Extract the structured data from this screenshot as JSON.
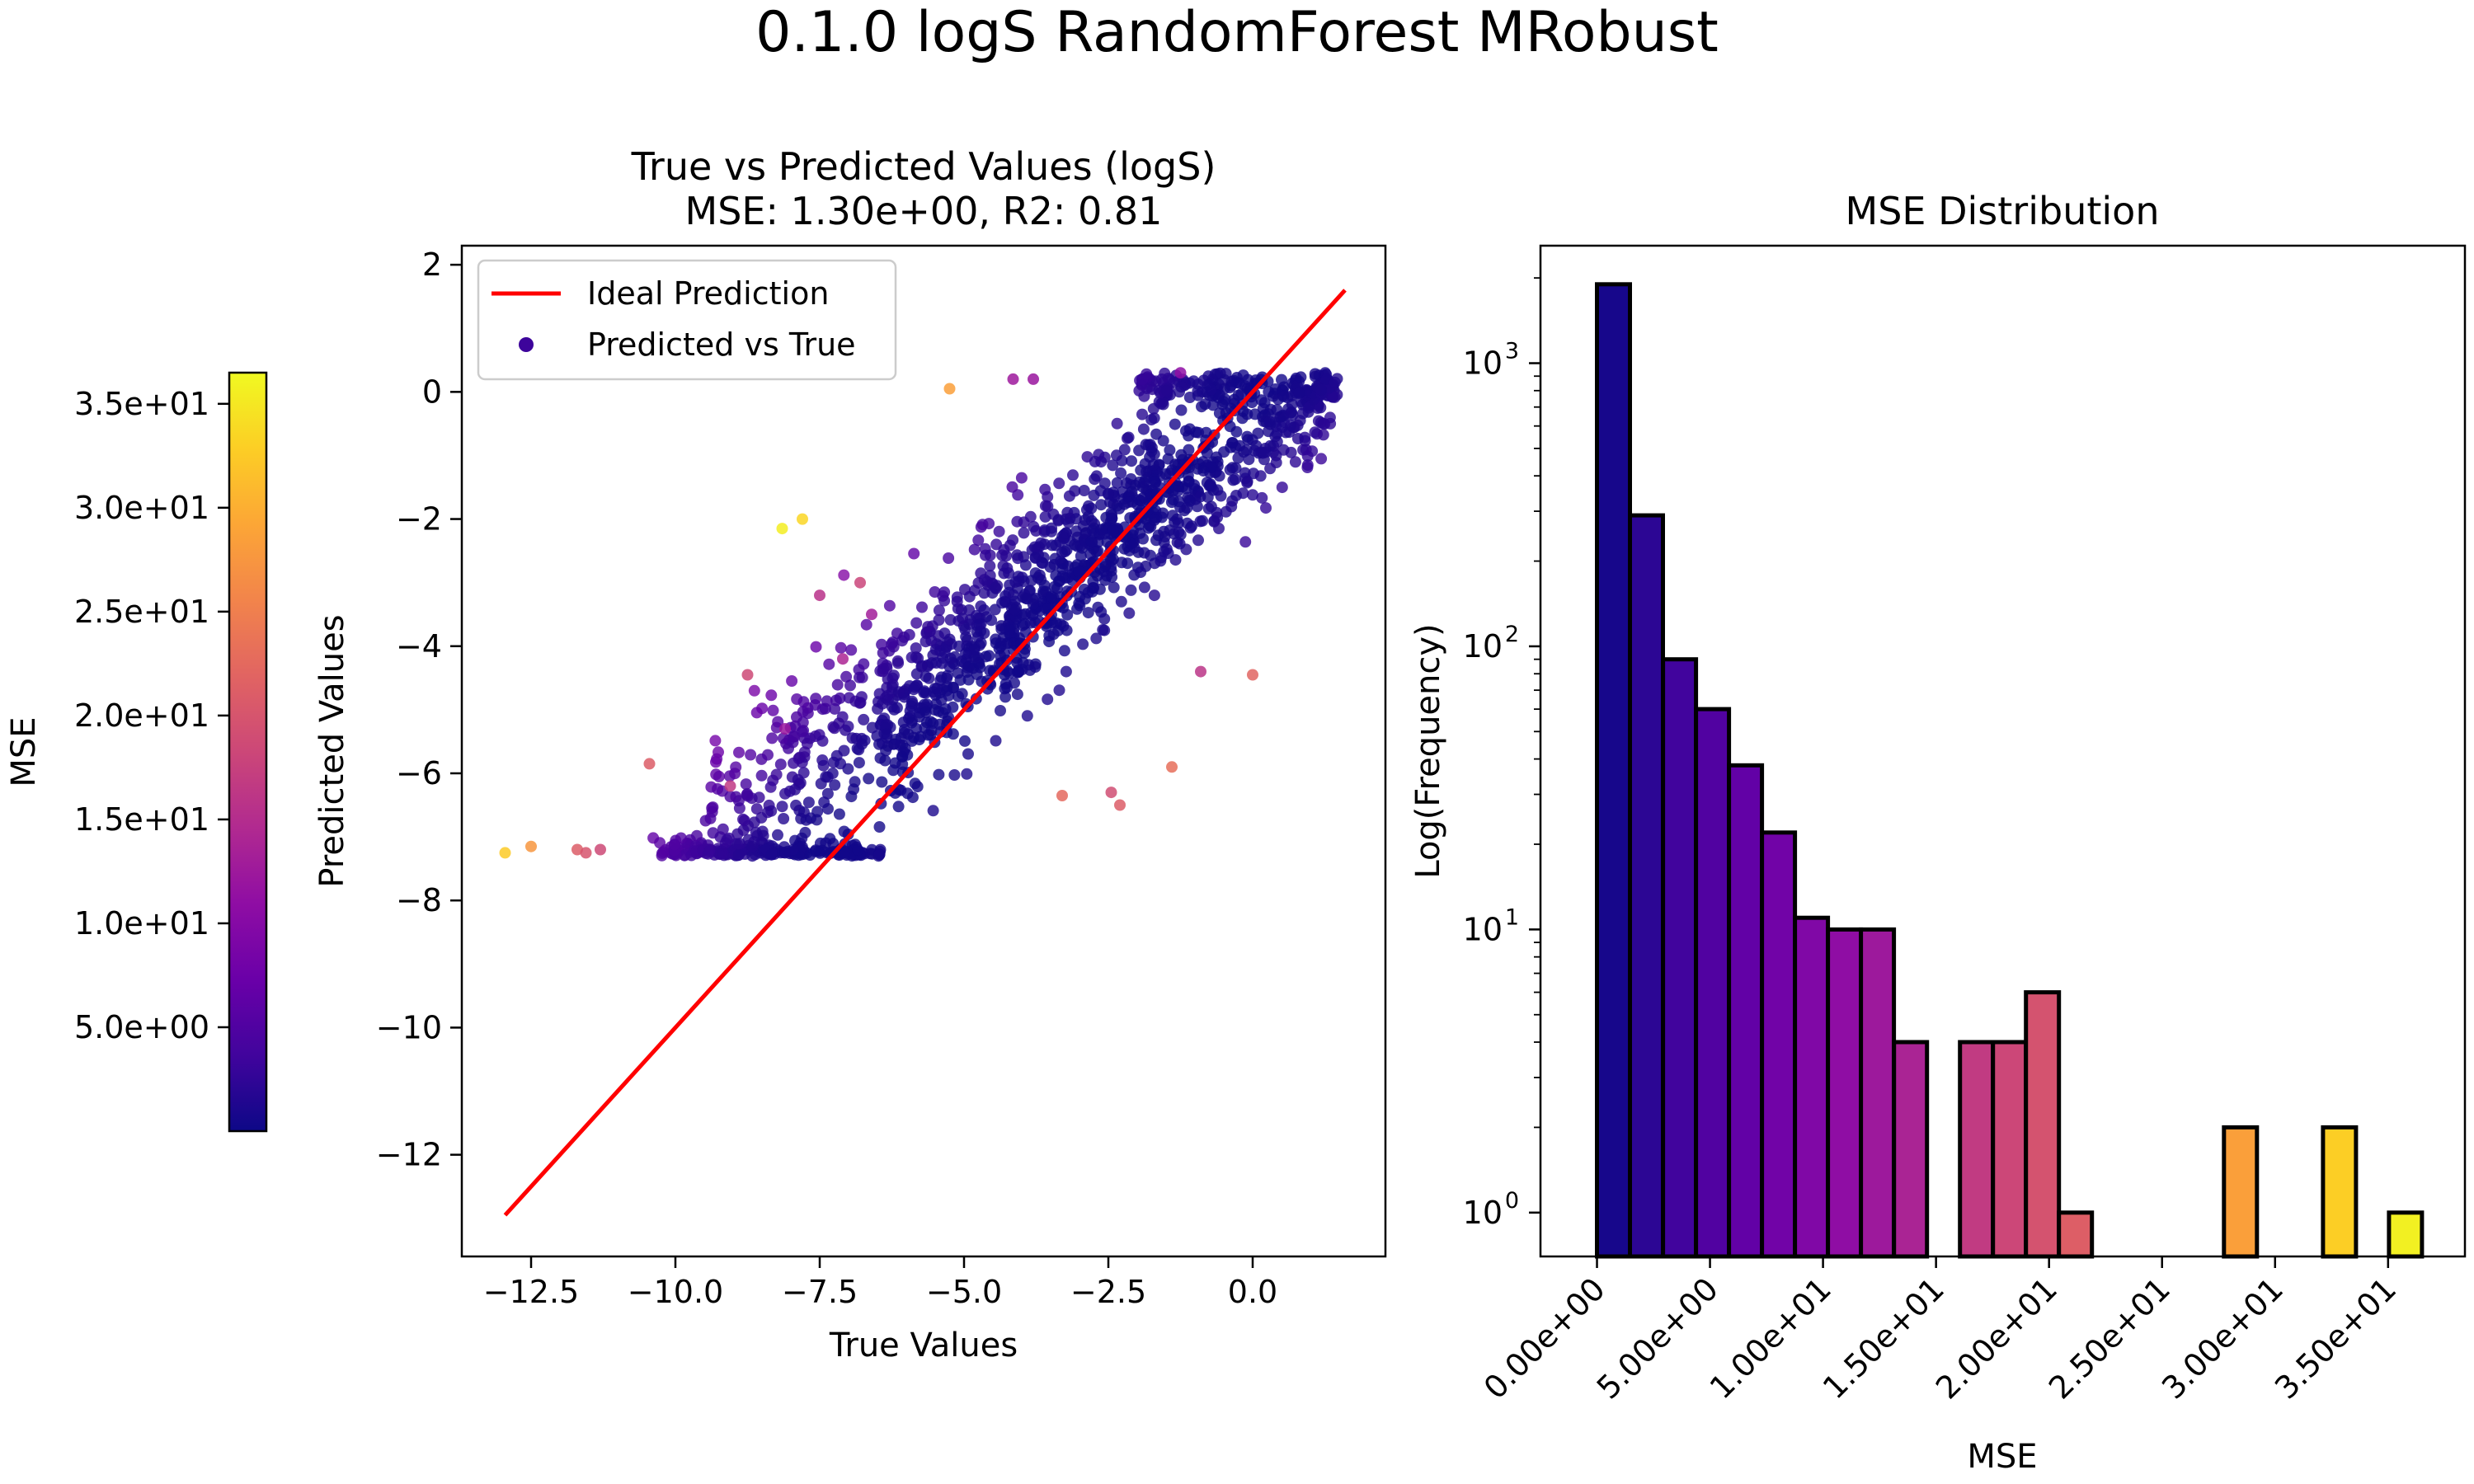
{
  "suptitle": "0.1.0 logS RandomForest MRobust",
  "colorbar": {
    "label": "MSE",
    "range": [
      0.0,
      36.5
    ],
    "ticks": [
      5,
      10,
      15,
      20,
      25,
      30,
      35
    ],
    "tick_labels": [
      "5.0e+00",
      "1.0e+01",
      "1.5e+01",
      "2.0e+01",
      "2.5e+01",
      "3.0e+01",
      "3.5e+01"
    ],
    "colormap": "plasma"
  },
  "chart_data": [
    {
      "type": "scatter",
      "title_line1": "True vs Predicted Values (logS)",
      "title_line2": "MSE: 1.30e+00, R2: 0.81",
      "xlabel": "True Values",
      "ylabel": "Predicted Values",
      "xlim": [
        -13.7,
        2.3
      ],
      "ylim": [
        -13.6,
        2.3
      ],
      "xticks": [
        -12.5,
        -10.0,
        -7.5,
        -5.0,
        -2.5,
        0.0
      ],
      "xtick_labels": [
        "−12.5",
        "−10.0",
        "−7.5",
        "−5.0",
        "−2.5",
        "0.0"
      ],
      "yticks": [
        2,
        0,
        -2,
        -4,
        -6,
        -8,
        -10,
        -12
      ],
      "ytick_labels": [
        "2",
        "0",
        "−2",
        "−4",
        "−6",
        "−8",
        "−10",
        "−12"
      ],
      "legend": {
        "placement": "upper-left",
        "entries": [
          "Ideal Prediction",
          "Predicted vs True"
        ]
      },
      "ideal_line": {
        "x": [
          -12.95,
          1.6
        ],
        "y": [
          -12.95,
          1.6
        ],
        "color": "#ff0000"
      },
      "outliers": [
        {
          "x": -12.95,
          "y": -7.25,
          "mse": 32.5
        },
        {
          "x": -12.5,
          "y": -7.15,
          "mse": 27.5
        },
        {
          "x": -11.7,
          "y": -7.2,
          "mse": 21.0
        },
        {
          "x": -11.55,
          "y": -7.25,
          "mse": 20.0
        },
        {
          "x": -11.3,
          "y": -7.2,
          "mse": 18.5
        },
        {
          "x": -10.45,
          "y": -5.85,
          "mse": 21.0
        },
        {
          "x": -8.15,
          "y": -2.15,
          "mse": 35.5
        },
        {
          "x": -7.8,
          "y": -2.0,
          "mse": 33.5
        },
        {
          "x": -8.75,
          "y": -4.45,
          "mse": 18.5
        },
        {
          "x": -5.25,
          "y": 0.05,
          "mse": 28.5
        },
        {
          "x": -3.3,
          "y": -6.35,
          "mse": 22.5
        },
        {
          "x": -2.45,
          "y": -6.3,
          "mse": 19.0
        },
        {
          "x": -2.3,
          "y": -6.5,
          "mse": 21.0
        },
        {
          "x": -1.4,
          "y": -5.9,
          "mse": 23.0
        },
        {
          "x": -0.9,
          "y": -4.4,
          "mse": 16.0
        },
        {
          "x": 0.0,
          "y": -4.45,
          "mse": 22.0
        },
        {
          "x": -1.25,
          "y": 0.3,
          "mse": 11.0
        },
        {
          "x": -6.8,
          "y": -3.0,
          "mse": 18.0
        },
        {
          "x": -7.1,
          "y": -4.2,
          "mse": 14.0
        },
        {
          "x": -9.05,
          "y": -6.2,
          "mse": 16.5
        },
        {
          "x": -8.1,
          "y": -5.3,
          "mse": 12.0
        },
        {
          "x": -4.15,
          "y": 0.2,
          "mse": 12.5
        },
        {
          "x": -3.8,
          "y": 0.2,
          "mse": 12.0
        },
        {
          "x": -7.5,
          "y": -3.2,
          "mse": 15.5
        },
        {
          "x": -6.6,
          "y": -3.5,
          "mse": 13.0
        }
      ],
      "bands": [
        {
          "x0": -10.4,
          "x1": -6.4,
          "y": -7.25,
          "spread": 0.12,
          "count": 180
        },
        {
          "x0": -9.5,
          "x1": -3.5,
          "y0": -7.0,
          "y1": -3.0,
          "spread": 0.75,
          "count": 420
        },
        {
          "x0": -6.5,
          "x1": -1.5,
          "y0": -5.5,
          "y1": -1.5,
          "spread": 0.7,
          "count": 440
        },
        {
          "x0": -3.5,
          "x1": 1.4,
          "y0": -2.8,
          "y1": 0.0,
          "spread": 0.55,
          "count": 480
        },
        {
          "x0": -2.0,
          "x1": 1.5,
          "y": 0.05,
          "spread": 0.15,
          "count": 140
        }
      ]
    },
    {
      "type": "bar",
      "subtype": "histogram",
      "title": "MSE Distribution",
      "xlabel": "MSE",
      "ylabel": "Log(Frequency)",
      "yscale": "log",
      "xlim": [
        -2.5,
        38.4
      ],
      "ylim": [
        0.7,
        2600
      ],
      "xticks": [
        0,
        5,
        10,
        15,
        20,
        25,
        30,
        35
      ],
      "xtick_labels": [
        "0.00e+00",
        "5.00e+00",
        "1.00e+01",
        "1.50e+01",
        "2.00e+01",
        "2.50e+01",
        "3.00e+01",
        "3.50e+01"
      ],
      "yticks": [
        1,
        10,
        100,
        1000
      ],
      "ytick_labels": [
        "10",
        "10",
        "10",
        "10"
      ],
      "ytick_exponents": [
        "0",
        "1",
        "2",
        "3"
      ],
      "bin_edges": [
        0.0,
        1.46,
        2.92,
        4.38,
        5.84,
        7.3,
        8.76,
        10.22,
        11.68,
        13.14,
        14.6,
        16.06,
        17.52,
        18.98,
        20.44,
        21.9,
        23.36,
        24.82,
        26.28,
        27.74,
        29.2,
        30.66,
        32.12,
        33.58,
        35.04,
        36.5
      ],
      "values": [
        1900,
        290,
        90,
        60,
        38,
        22,
        11,
        10,
        10,
        4,
        0,
        4,
        4,
        6,
        1,
        0,
        0,
        0,
        0,
        2,
        0,
        0,
        2,
        0,
        1
      ]
    }
  ]
}
